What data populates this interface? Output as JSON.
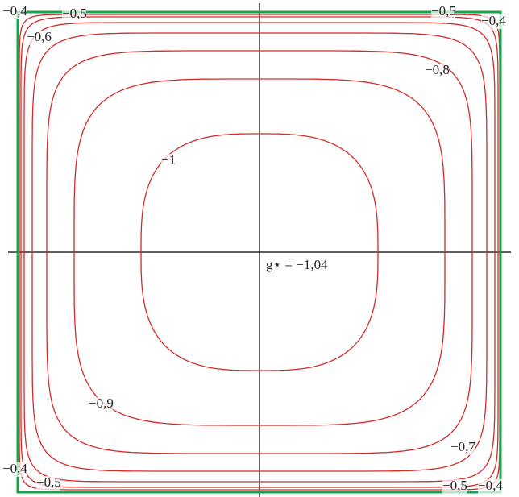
{
  "chart_data": {
    "type": "contour",
    "levels": [
      {
        "value": -1,
        "label": "−1"
      },
      {
        "value": -0.9,
        "label": "−0,9"
      },
      {
        "value": -0.8,
        "label": "−0,8"
      },
      {
        "value": -0.7,
        "label": "−0,7"
      },
      {
        "value": -0.6,
        "label": "−0,6"
      },
      {
        "value": -0.5,
        "label": "−0,5"
      },
      {
        "value": -0.4,
        "label": "−0,4"
      }
    ],
    "color": "#d42a2a",
    "frame_color": "#1aa34a",
    "annotation": "g⋆ = −1,04"
  }
}
